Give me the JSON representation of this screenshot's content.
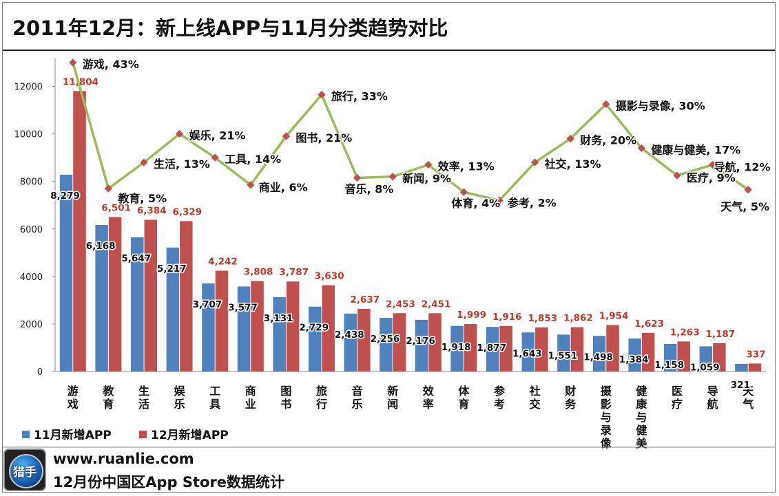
{
  "header": {
    "title": "2011年12月：新上线APP与11月分类趋势对比"
  },
  "footer": {
    "logo_text": "猎手",
    "url": "www.ruanlie.com",
    "subtitle": "12月份中国区App  Store数据统计"
  },
  "colors": {
    "series_nov": "#4f81bd",
    "series_dec": "#c0504d",
    "line": "#9bbb59",
    "marker": "#c0504d",
    "dec_label": "#c0392b"
  },
  "chart_data": {
    "type": "bar",
    "title": "2011年12月：新上线APP与11月分类趋势对比",
    "categories": [
      "游戏",
      "教育",
      "生活",
      "娱乐",
      "工具",
      "商业",
      "图书",
      "旅行",
      "音乐",
      "新闻",
      "效率",
      "体育",
      "参考",
      "社交",
      "财务",
      "摄影与录像",
      "健康与健美",
      "医疗",
      "导航",
      "天气"
    ],
    "series": [
      {
        "name": "11月新增APP",
        "values": [
          8279,
          6168,
          5647,
          5217,
          3707,
          3577,
          3131,
          2729,
          2438,
          2256,
          2176,
          1918,
          1877,
          1643,
          1551,
          1498,
          1384,
          1158,
          1059,
          321
        ],
        "labels": [
          "8,279",
          "6,168",
          "5,647",
          "5,217",
          "3,707",
          "3,577",
          "3,131",
          "2,729",
          "2,438",
          "2,256",
          "2,176",
          "1,918",
          "1,877",
          "1,643",
          "1,551",
          "1,498",
          "1,384",
          "1,158",
          "1,059",
          "321"
        ]
      },
      {
        "name": "12月新增APP",
        "values": [
          11804,
          6501,
          6384,
          6329,
          4242,
          3808,
          3787,
          3630,
          2637,
          2453,
          2451,
          1999,
          1916,
          1853,
          1862,
          1954,
          1623,
          1263,
          1187,
          337
        ],
        "labels": [
          "11,804",
          "6,501",
          "6,384",
          "6,329",
          "4,242",
          "3,808",
          "3,787",
          "3,630",
          "2,637",
          "2,453",
          "2,451",
          "1,999",
          "1,916",
          "1,853",
          "1,862",
          "1,954",
          "1,623",
          "1,263",
          "1,187",
          "337"
        ]
      }
    ],
    "trend_line": {
      "values": [
        13000,
        7700,
        8800,
        10000,
        9000,
        7850,
        9900,
        11650,
        8150,
        8200,
        8700,
        7550,
        7200,
        8800,
        9800,
        11250,
        9400,
        8250,
        8700,
        7650
      ],
      "labels": [
        "游戏, 43%",
        "教育, 5%",
        "生活, 13%",
        "娱乐, 21%",
        "工具, 14%",
        "商业, 6%",
        "图书, 21%",
        "旅行, 33%",
        "音乐, 8%",
        "新闻, 9%",
        "效率, 13%",
        "体育, 4%",
        "参考, 2%",
        "社交, 13%",
        "财务, 20%",
        "摄影与录像, 30%",
        "健康与健美, 17%",
        "医疗, 9%",
        "导航, 12%",
        "天气, 5%"
      ]
    },
    "y_ticks": [
      "0",
      "2000",
      "4000",
      "6000",
      "8000",
      "10000",
      "12000"
    ],
    "ylim": [
      0,
      13000
    ],
    "grid": false,
    "legend": "bottom-left",
    "xlabel": "",
    "ylabel": ""
  }
}
